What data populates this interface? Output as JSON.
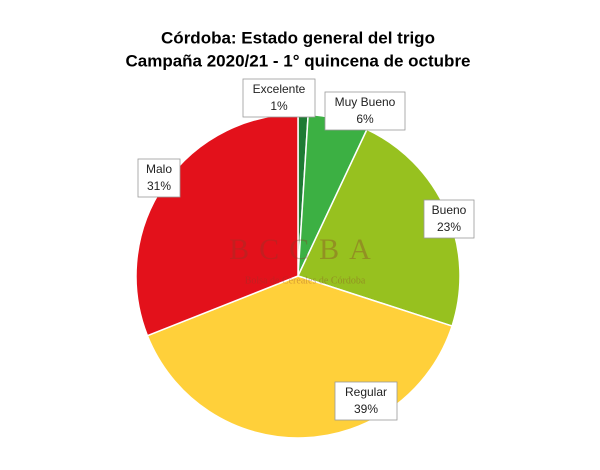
{
  "chart_data": {
    "type": "pie",
    "title": "Córdoba: Estado general del trigo",
    "subtitle": "Campaña 2020/21 - 1° quincena de octubre",
    "categories": [
      "Excelente",
      "Muy Bueno",
      "Bueno",
      "Regular",
      "Malo"
    ],
    "values": [
      1,
      6,
      23,
      39,
      31
    ],
    "value_labels": [
      "1%",
      "6%",
      "23%",
      "39%",
      "31%"
    ],
    "colors": [
      "#1e7b34",
      "#3cb043",
      "#97c11f",
      "#ffd03a",
      "#e3111b"
    ],
    "watermark": {
      "text": "BCCBA",
      "subtext": "Bolsa de Cereales de Córdoba"
    }
  }
}
